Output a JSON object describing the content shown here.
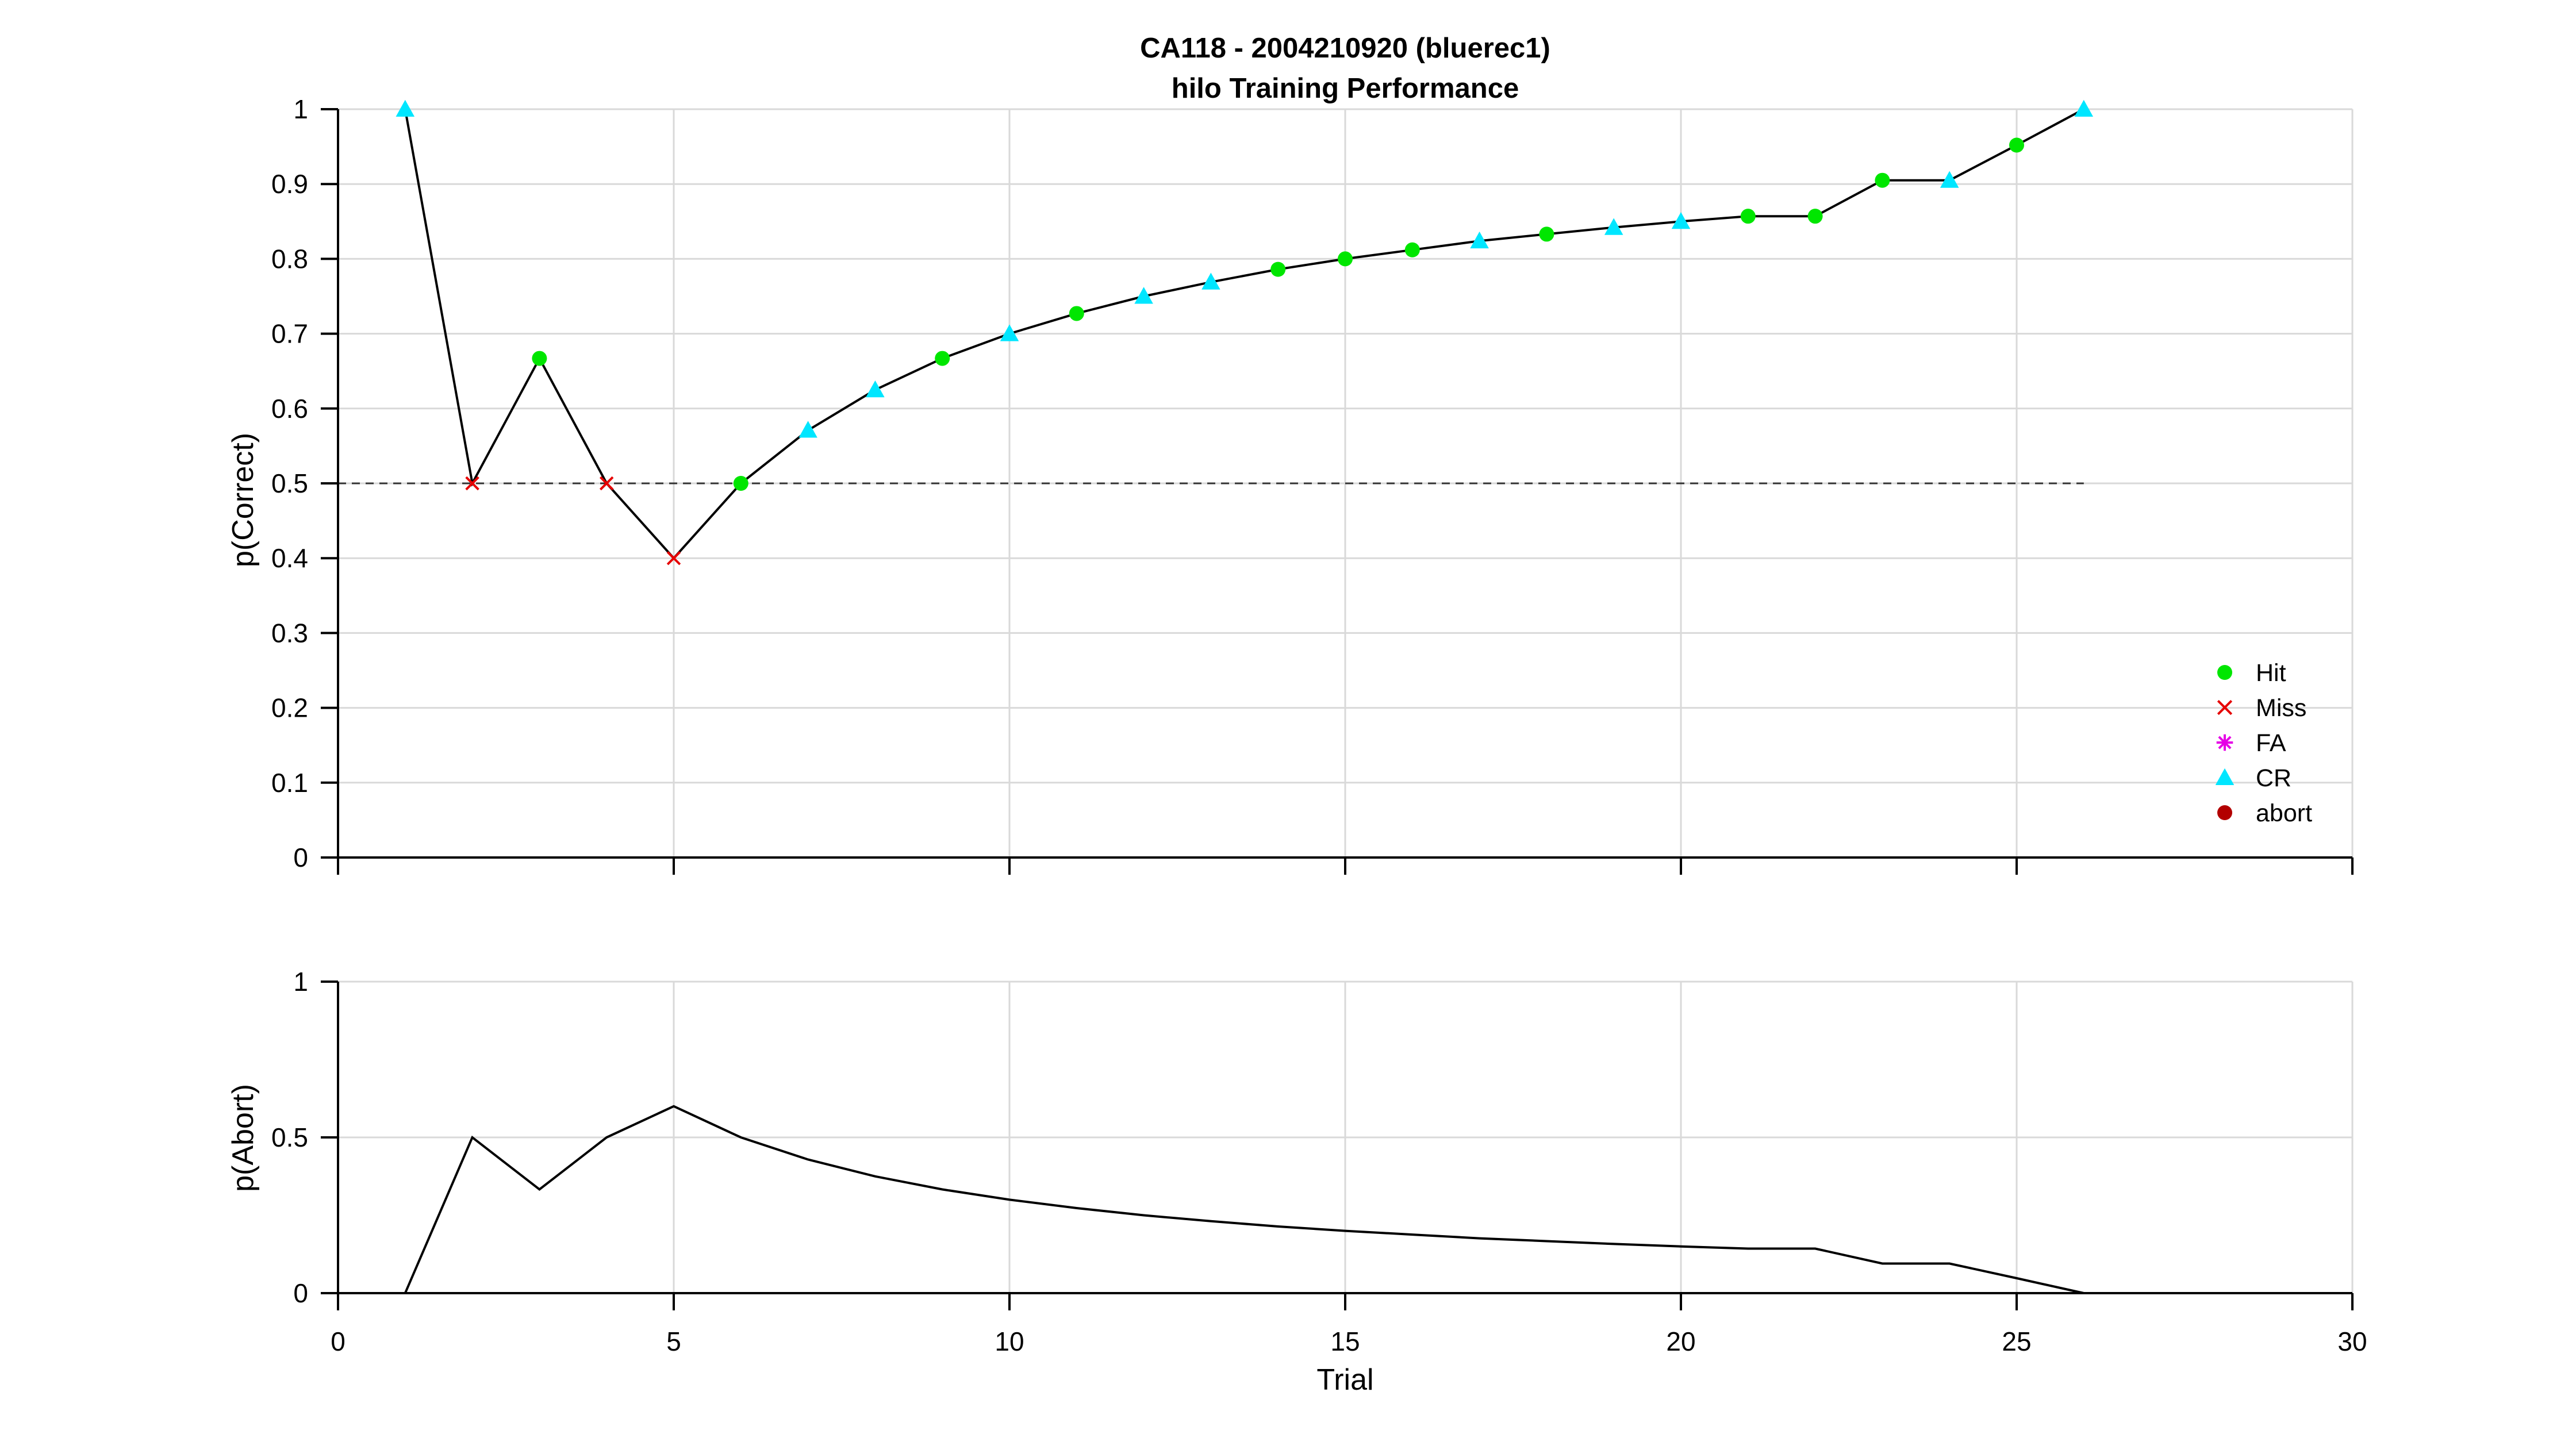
{
  "chart_data": [
    {
      "type": "line",
      "title": "CA118 - 2004210920 (bluerec1)",
      "subtitle": "hilo Training Performance",
      "xlabel": "",
      "ylabel": "p(Correct)",
      "xlim": [
        0,
        30
      ],
      "ylim": [
        0,
        1
      ],
      "xticks": [
        0,
        5,
        10,
        15,
        20,
        25,
        30
      ],
      "yticks": [
        0,
        0.1,
        0.2,
        0.3,
        0.4,
        0.5,
        0.6,
        0.7,
        0.8,
        0.9,
        1
      ],
      "ytick_labels": [
        "0",
        "0.1",
        "0.2",
        "0.3",
        "0.4",
        "0.5",
        "0.6",
        "0.7",
        "0.8",
        "0.9",
        "1"
      ],
      "grid": true,
      "chance_line": {
        "y": 0.5,
        "x": [
          0,
          26
        ],
        "style": "dashed"
      },
      "series": [
        {
          "x": [
            1,
            2,
            3,
            4,
            5,
            6,
            7,
            8,
            9,
            10,
            11,
            12,
            13,
            14,
            15,
            16,
            17,
            18,
            19,
            20,
            21,
            22,
            23,
            24,
            25,
            26
          ],
          "y": [
            1,
            0.5,
            0.667,
            0.5,
            0.4,
            0.5,
            0.571,
            0.625,
            0.667,
            0.7,
            0.727,
            0.75,
            0.769,
            0.786,
            0.8,
            0.812,
            0.824,
            0.833,
            0.842,
            0.85,
            0.857,
            0.857,
            0.905,
            0.905,
            0.952,
            1
          ],
          "outcome": [
            "CR",
            "Miss",
            "Hit",
            "Miss",
            "Miss",
            "Hit",
            "CR",
            "CR",
            "Hit",
            "CR",
            "Hit",
            "CR",
            "CR",
            "Hit",
            "Hit",
            "Hit",
            "CR",
            "Hit",
            "CR",
            "CR",
            "Hit",
            "Hit",
            "Hit",
            "CR",
            "Hit",
            "CR"
          ]
        }
      ],
      "legend": {
        "placement": "lower-right",
        "entries": [
          {
            "label": "Hit",
            "marker": "circle",
            "color": "#00e600"
          },
          {
            "label": "Miss",
            "marker": "x",
            "color": "#e60000"
          },
          {
            "label": "FA",
            "marker": "asterisk",
            "color": "#e600e6"
          },
          {
            "label": "CR",
            "marker": "triangle",
            "color": "#00e6ff"
          },
          {
            "label": "abort",
            "marker": "circle",
            "color": "#b30000"
          }
        ]
      }
    },
    {
      "type": "line",
      "xlabel": "Trial",
      "ylabel": "p(Abort)",
      "xlim": [
        0,
        30
      ],
      "ylim": [
        0,
        1
      ],
      "xticks": [
        0,
        5,
        10,
        15,
        20,
        25,
        30
      ],
      "xtick_labels": [
        "0",
        "5",
        "10",
        "15",
        "20",
        "25",
        "30"
      ],
      "yticks": [
        0,
        0.5,
        1
      ],
      "ytick_labels": [
        "0",
        "0.5",
        "1"
      ],
      "grid": true,
      "series": [
        {
          "x": [
            1,
            2,
            3,
            4,
            5,
            6,
            7,
            8,
            9,
            10,
            11,
            12,
            13,
            14,
            15,
            16,
            17,
            18,
            19,
            20,
            21,
            22,
            23,
            24,
            25,
            26
          ],
          "y": [
            0,
            0.5,
            0.333,
            0.5,
            0.6,
            0.5,
            0.429,
            0.375,
            0.333,
            0.3,
            0.273,
            0.25,
            0.231,
            0.214,
            0.2,
            0.188,
            0.176,
            0.167,
            0.158,
            0.15,
            0.143,
            0.143,
            0.095,
            0.095,
            0.048,
            0
          ]
        }
      ]
    }
  ]
}
